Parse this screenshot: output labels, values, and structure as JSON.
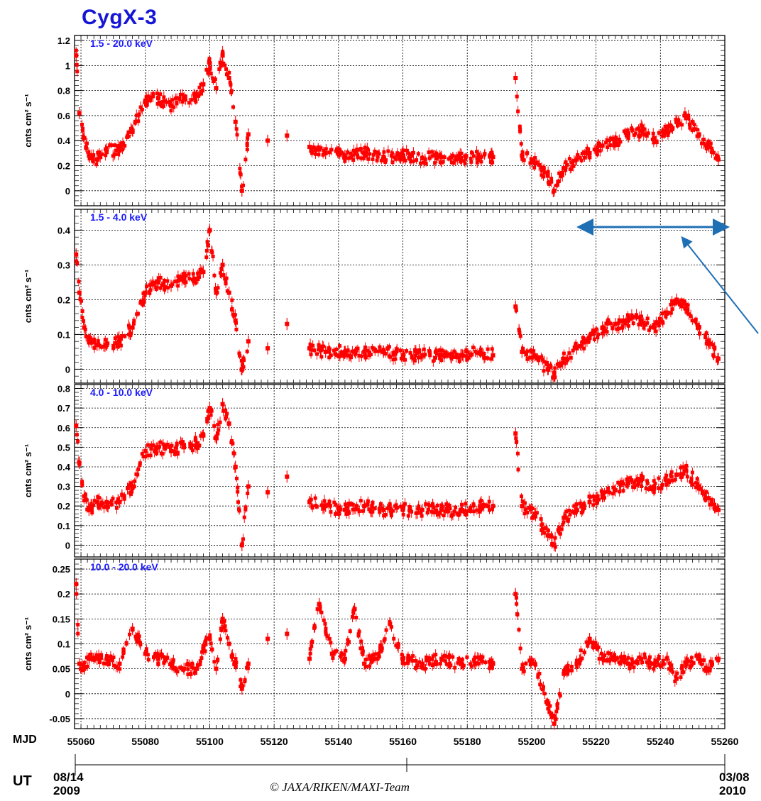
{
  "title": "CygX-3",
  "copyright": "© JAXA/RIKEN/MAXI-Team",
  "x_axis": {
    "label": "MJD",
    "range": [
      55058,
      55260
    ],
    "ticks": [
      55060,
      55080,
      55100,
      55120,
      55140,
      55160,
      55180,
      55200,
      55220,
      55240,
      55260
    ]
  },
  "ut_axis": {
    "label": "UT",
    "start_date": "08/14",
    "start_year": "2009",
    "end_date": "03/08",
    "end_year": "2010"
  },
  "ylabel": "cnts cm² s⁻¹",
  "colors": {
    "data": "#ff0000",
    "band_label": "#1a1aff",
    "title": "#1515d6",
    "annotation": "#1f6fb5",
    "grid": "#000000"
  },
  "chart_data": [
    {
      "type": "scatter",
      "band": "1.5 - 20.0 keV",
      "ylabel": "cnts cm² s⁻¹",
      "ylim": [
        -0.12,
        1.24
      ],
      "yticks": [
        0,
        0.2,
        0.4,
        0.6,
        0.8,
        1,
        1.2
      ],
      "ytick_labels": [
        "0",
        "0.2",
        "0.4",
        "0.6",
        "0.8",
        "1",
        "1.2"
      ],
      "grid": true,
      "x": [
        55058.5,
        55059.5,
        55061,
        55062.5,
        55065,
        55068,
        55072,
        55076,
        55080,
        55084,
        55088,
        55092,
        55096,
        55098,
        55100,
        55102,
        55104,
        55106,
        55108,
        55110,
        55112,
        55118,
        55124,
        55131,
        55136,
        55142,
        55148,
        55154,
        55160,
        55166,
        55172,
        55178,
        55184,
        55188,
        55195,
        55197,
        55201,
        55205,
        55207,
        55210,
        55214,
        55218,
        55222,
        55226,
        55230,
        55234,
        55238,
        55242,
        55245,
        55248,
        55252,
        55255,
        55258
      ],
      "y": [
        1.08,
        0.62,
        0.42,
        0.28,
        0.25,
        0.33,
        0.32,
        0.48,
        0.72,
        0.74,
        0.68,
        0.74,
        0.76,
        0.85,
        1.02,
        0.82,
        1.08,
        0.9,
        0.55,
        0.0,
        0.45,
        0.4,
        0.44,
        0.35,
        0.3,
        0.28,
        0.3,
        0.27,
        0.28,
        0.26,
        0.27,
        0.26,
        0.27,
        0.27,
        0.9,
        0.28,
        0.22,
        0.12,
        0.0,
        0.18,
        0.25,
        0.3,
        0.36,
        0.4,
        0.45,
        0.48,
        0.42,
        0.48,
        0.55,
        0.58,
        0.45,
        0.36,
        0.25
      ]
    },
    {
      "type": "scatter",
      "band": "1.5 - 4.0 keV",
      "ylabel": "cnts cm² s⁻¹",
      "ylim": [
        -0.04,
        0.46
      ],
      "yticks": [
        0,
        0.1,
        0.2,
        0.3,
        0.4
      ],
      "ytick_labels": [
        "0",
        "0.1",
        "0.2",
        "0.3",
        "0.4"
      ],
      "grid": true,
      "x": [
        55058.5,
        55059.5,
        55061,
        55062.5,
        55065,
        55068,
        55072,
        55076,
        55080,
        55084,
        55088,
        55092,
        55096,
        55098,
        55100,
        55102,
        55104,
        55106,
        55108,
        55110,
        55112,
        55118,
        55124,
        55131,
        55136,
        55142,
        55148,
        55154,
        55160,
        55166,
        55172,
        55178,
        55184,
        55188,
        55195,
        55197,
        55201,
        55205,
        55207,
        55210,
        55214,
        55218,
        55222,
        55226,
        55230,
        55234,
        55238,
        55242,
        55245,
        55248,
        55252,
        55255,
        55258
      ],
      "y": [
        0.33,
        0.22,
        0.12,
        0.08,
        0.07,
        0.07,
        0.08,
        0.12,
        0.22,
        0.25,
        0.24,
        0.26,
        0.26,
        0.28,
        0.4,
        0.22,
        0.3,
        0.22,
        0.14,
        0.0,
        0.08,
        0.06,
        0.13,
        0.06,
        0.05,
        0.05,
        0.05,
        0.05,
        0.04,
        0.04,
        0.04,
        0.04,
        0.05,
        0.04,
        0.18,
        0.05,
        0.04,
        0.0,
        -0.01,
        0.03,
        0.06,
        0.09,
        0.12,
        0.13,
        0.14,
        0.14,
        0.12,
        0.16,
        0.2,
        0.18,
        0.12,
        0.08,
        0.03
      ]
    },
    {
      "type": "scatter",
      "band": "4.0 - 10.0 keV",
      "ylabel": "cnts cm² s⁻¹",
      "ylim": [
        -0.06,
        0.82
      ],
      "yticks": [
        0,
        0.1,
        0.2,
        0.3,
        0.4,
        0.5,
        0.6,
        0.7,
        0.8
      ],
      "ytick_labels": [
        "0",
        "0.1",
        "0.2",
        "0.3",
        "0.4",
        "0.5",
        "0.6",
        "0.7",
        "0.8"
      ],
      "grid": true,
      "x": [
        55058.5,
        55059.5,
        55061,
        55062.5,
        55065,
        55068,
        55072,
        55076,
        55080,
        55084,
        55088,
        55092,
        55096,
        55098,
        55100,
        55102,
        55104,
        55106,
        55108,
        55110,
        55112,
        55118,
        55124,
        55131,
        55136,
        55142,
        55148,
        55154,
        55160,
        55166,
        55172,
        55178,
        55184,
        55188,
        55195,
        55197,
        55201,
        55205,
        55207,
        55210,
        55214,
        55218,
        55222,
        55226,
        55230,
        55234,
        55238,
        55242,
        55245,
        55248,
        55252,
        55255,
        55258
      ],
      "y": [
        0.61,
        0.42,
        0.25,
        0.18,
        0.22,
        0.22,
        0.22,
        0.3,
        0.48,
        0.5,
        0.48,
        0.5,
        0.52,
        0.56,
        0.7,
        0.55,
        0.72,
        0.62,
        0.4,
        0.0,
        0.3,
        0.27,
        0.35,
        0.22,
        0.2,
        0.18,
        0.2,
        0.18,
        0.18,
        0.18,
        0.18,
        0.18,
        0.2,
        0.2,
        0.57,
        0.2,
        0.16,
        0.05,
        0.0,
        0.14,
        0.18,
        0.22,
        0.26,
        0.28,
        0.32,
        0.33,
        0.3,
        0.33,
        0.36,
        0.38,
        0.3,
        0.24,
        0.18
      ]
    },
    {
      "type": "scatter",
      "band": "10.0 - 20.0 keV",
      "ylabel": "cnts cm² s⁻¹",
      "ylim": [
        -0.07,
        0.27
      ],
      "yticks": [
        -0.05,
        0,
        0.05,
        0.1,
        0.15,
        0.2,
        0.25
      ],
      "ytick_labels": [
        "-0.05",
        "0",
        "0.05",
        "0.1",
        "0.15",
        "0.2",
        "0.25"
      ],
      "grid": true,
      "x": [
        55058.5,
        55059.5,
        55061,
        55062.5,
        55065,
        55068,
        55072,
        55076,
        55080,
        55084,
        55088,
        55092,
        55096,
        55098,
        55100,
        55102,
        55104,
        55106,
        55108,
        55110,
        55112,
        55118,
        55124,
        55131,
        55134,
        55138,
        55142,
        55145,
        55148,
        55152,
        55156,
        55160,
        55166,
        55172,
        55178,
        55184,
        55188,
        55195,
        55197,
        55201,
        55205,
        55207,
        55210,
        55214,
        55218,
        55222,
        55226,
        55230,
        55234,
        55238,
        55242,
        55245,
        55248,
        55252,
        55255,
        55258
      ],
      "y": [
        0.22,
        0.06,
        0.05,
        0.07,
        0.07,
        0.07,
        0.06,
        0.13,
        0.08,
        0.07,
        0.06,
        0.05,
        0.05,
        0.09,
        0.11,
        0.05,
        0.15,
        0.1,
        0.06,
        0.01,
        0.06,
        0.11,
        0.12,
        0.07,
        0.18,
        0.08,
        0.07,
        0.17,
        0.06,
        0.07,
        0.14,
        0.07,
        0.06,
        0.07,
        0.06,
        0.07,
        0.06,
        0.2,
        0.05,
        0.06,
        -0.02,
        -0.06,
        0.04,
        0.06,
        0.11,
        0.07,
        0.07,
        0.06,
        0.07,
        0.06,
        0.07,
        0.03,
        0.06,
        0.07,
        0.05,
        0.07
      ]
    }
  ]
}
